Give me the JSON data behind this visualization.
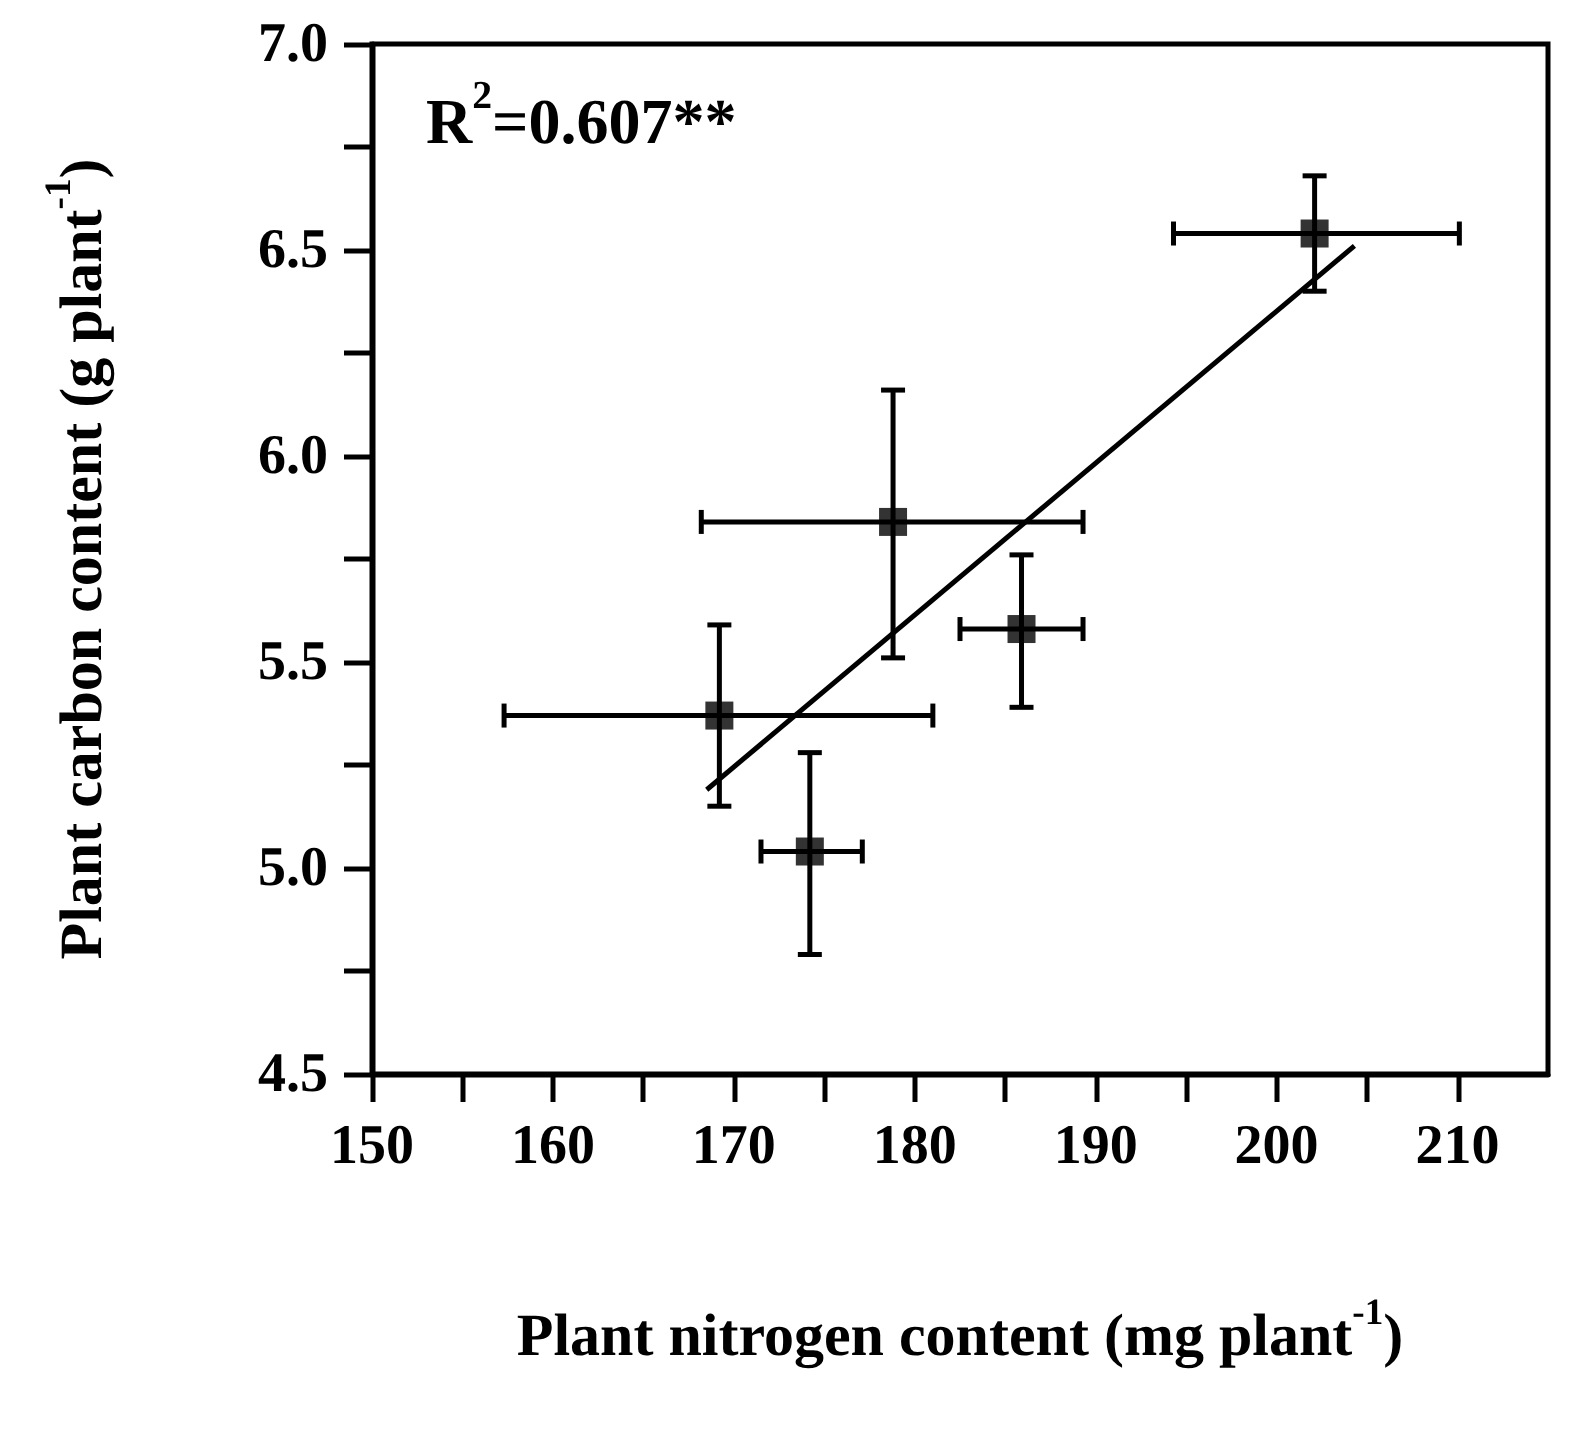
{
  "chart_data": {
    "type": "scatter",
    "xlabel": "Plant nitrogen content (mg plant$^{-1}$)",
    "ylabel": "Plant carbon content (g plant$^{-1}$)",
    "annotations": [
      "R$^{2}$=0.607**"
    ],
    "marker": "square",
    "series": [
      {
        "color": "#000000",
        "x": [
          169.2,
          174.2,
          178.8,
          185.9,
          202.1
        ],
        "values": [
          5.37,
          5.04,
          5.84,
          5.58,
          6.54
        ],
        "errors": [
          [
            5.15,
            5.59
          ],
          [
            4.79,
            5.28
          ],
          [
            5.51,
            6.16
          ],
          [
            5.39,
            5.76
          ],
          [
            6.4,
            6.68
          ]
        ],
        "xerrors": [
          [
            157.3,
            181.0
          ],
          [
            171.5,
            177.1
          ],
          [
            168.2,
            189.3
          ],
          [
            182.5,
            189.3
          ],
          [
            194.3,
            210.1
          ]
        ]
      },
      {
        "type": "line",
        "color": "#000000",
        "x": [
          168.5,
          204.3
        ],
        "values": [
          5.19,
          6.51
        ],
        "marker": "none",
        "line_style": "solid"
      }
    ],
    "xlim": [
      150,
      215
    ],
    "xticks": [
      150,
      {
        "value": 155,
        "label": null
      },
      160,
      {
        "value": 165,
        "label": null
      },
      170,
      {
        "value": 175,
        "label": null
      },
      180,
      {
        "value": 185,
        "label": null
      },
      190,
      {
        "value": 195,
        "label": null
      },
      200,
      {
        "value": 205,
        "label": null
      },
      210
    ],
    "ylim": [
      4.5,
      7.0
    ],
    "yticks": [
      "4.5",
      {
        "value": 4.75,
        "label": null
      },
      {
        "value": 5.0,
        "label": "5.0"
      },
      {
        "value": 5.25,
        "label": null
      },
      "5.5",
      {
        "value": 5.75,
        "label": null
      },
      {
        "value": 6.0,
        "label": "6.0"
      },
      {
        "value": 6.25,
        "label": null
      },
      "6.5",
      {
        "value": 6.75,
        "label": null
      },
      {
        "value": 7.0,
        "label": "7.0"
      }
    ],
    "grid": false
  }
}
